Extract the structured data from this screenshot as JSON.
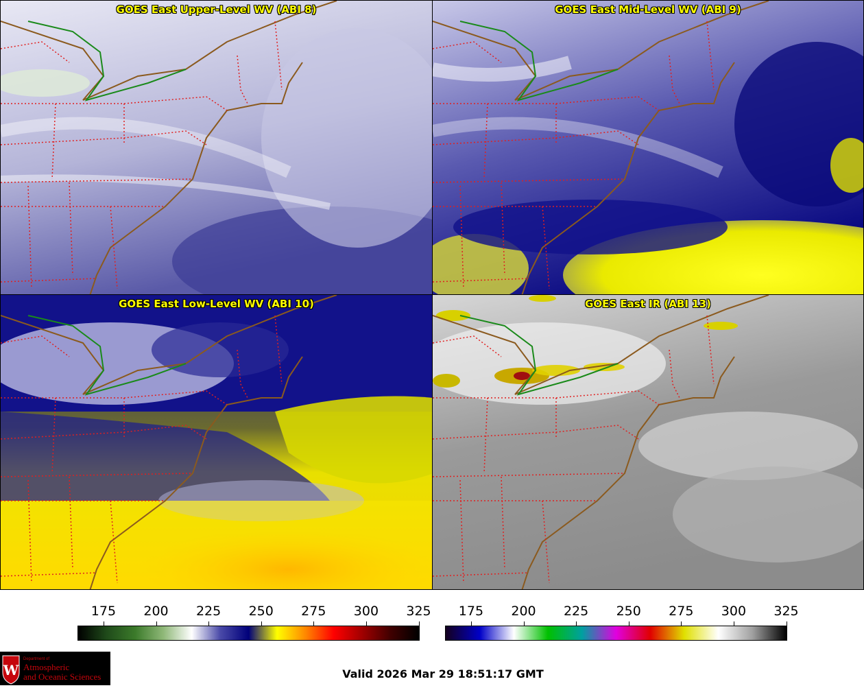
{
  "panels": [
    {
      "title": "GOES East Upper-Level WV (ABI 8)"
    },
    {
      "title": "GOES East Mid-Level WV (ABI 9)"
    },
    {
      "title": "GOES East Low-Level WV (ABI 10)"
    },
    {
      "title": "GOES East IR (ABI 13)"
    }
  ],
  "colorbar_wv": {
    "ticks": [
      "175",
      "200",
      "225",
      "250",
      "275",
      "300",
      "325"
    ],
    "colors": [
      "#000000",
      "#1f4a1a",
      "#3b7a2a",
      "#8fb878",
      "#ffffff",
      "#4a4aa8",
      "#00007a",
      "#ffff00",
      "#ff8800",
      "#ff0000",
      "#a00000",
      "#400000",
      "#000000"
    ]
  },
  "colorbar_ir": {
    "ticks": [
      "175",
      "200",
      "225",
      "250",
      "275",
      "300",
      "325"
    ],
    "colors": [
      "#14001e",
      "#0000c8",
      "#ffffff",
      "#00c000",
      "#00a0a0",
      "#e000e0",
      "#e00000",
      "#e0e000",
      "#ffffff",
      "#a0a0a0",
      "#000000"
    ]
  },
  "logo": {
    "shield_letter": "W",
    "line1": "Department of",
    "line2": "Atmospheric",
    "line3": "and Oceanic Sciences"
  },
  "footer": {
    "valid_text": "Valid 2026 Mar 29 18:51:17 GMT"
  }
}
